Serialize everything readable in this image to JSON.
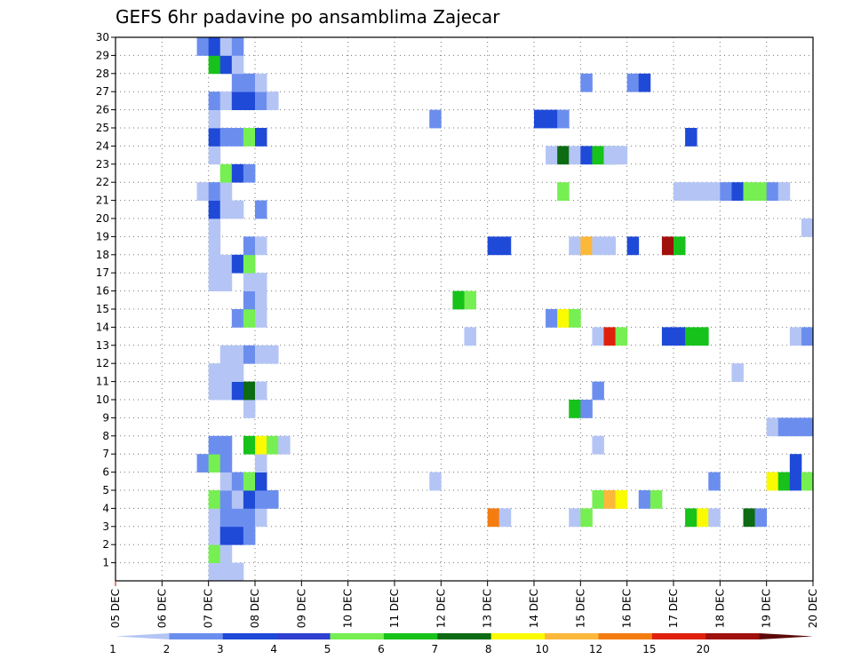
{
  "chart_data": {
    "type": "heatmap",
    "title": "GEFS 6hr padavine po ansamblima Zajecar",
    "x_ticks": [
      "05 DEC",
      "06 DEC",
      "07 DEC",
      "08 DEC",
      "09 DEC",
      "10 DEC",
      "11 DEC",
      "12 DEC",
      "13 DEC",
      "14 DEC",
      "15 DEC",
      "16 DEC",
      "17 DEC",
      "18 DEC",
      "19 DEC",
      "20 DEC"
    ],
    "y_ticks": [
      1,
      2,
      3,
      4,
      5,
      6,
      7,
      8,
      9,
      10,
      11,
      12,
      13,
      14,
      15,
      16,
      17,
      18,
      19,
      20,
      21,
      22,
      23,
      24,
      25,
      26,
      27,
      28,
      29,
      30
    ],
    "xlim": [
      0,
      60
    ],
    "ylim": [
      0,
      30
    ],
    "x_unit": "6-hour steps from 05 DEC 00Z",
    "grid": true,
    "colorbar": {
      "levels": [
        "1",
        "2",
        "3",
        "4",
        "5",
        "6",
        "7",
        "8",
        "10",
        "12",
        "15",
        "20"
      ],
      "colors": [
        "#b4c5f5",
        "#6b8eee",
        "#1f4ad8",
        "#2f3fd0",
        "#76ef52",
        "#17c21a",
        "#0d6b13",
        "#fafa00",
        "#fbb83a",
        "#f47c10",
        "#e0200c",
        "#a0100c",
        "#5c0808"
      ]
    },
    "cells": [
      {
        "x": 8,
        "y": 0,
        "c": 0
      },
      {
        "x": 9,
        "y": 0,
        "c": 0
      },
      {
        "x": 10,
        "y": 0,
        "c": 0
      },
      {
        "x": 8,
        "y": 1,
        "c": 4
      },
      {
        "x": 9,
        "y": 1,
        "c": 0
      },
      {
        "x": 8,
        "y": 2,
        "c": 0
      },
      {
        "x": 9,
        "y": 2,
        "c": 2
      },
      {
        "x": 10,
        "y": 2,
        "c": 2
      },
      {
        "x": 11,
        "y": 2,
        "c": 1
      },
      {
        "x": 8,
        "y": 3,
        "c": 0
      },
      {
        "x": 9,
        "y": 3,
        "c": 1
      },
      {
        "x": 10,
        "y": 3,
        "c": 1
      },
      {
        "x": 11,
        "y": 3,
        "c": 1
      },
      {
        "x": 12,
        "y": 3,
        "c": 0
      },
      {
        "x": 8,
        "y": 4,
        "c": 4
      },
      {
        "x": 9,
        "y": 4,
        "c": 1
      },
      {
        "x": 10,
        "y": 4,
        "c": 0
      },
      {
        "x": 11,
        "y": 4,
        "c": 2
      },
      {
        "x": 12,
        "y": 4,
        "c": 1
      },
      {
        "x": 13,
        "y": 4,
        "c": 1
      },
      {
        "x": 9,
        "y": 5,
        "c": 0
      },
      {
        "x": 10,
        "y": 5,
        "c": 1
      },
      {
        "x": 11,
        "y": 5,
        "c": 4
      },
      {
        "x": 12,
        "y": 5,
        "c": 2
      },
      {
        "x": 7,
        "y": 6,
        "c": 1
      },
      {
        "x": 8,
        "y": 6,
        "c": 4
      },
      {
        "x": 9,
        "y": 6,
        "c": 1
      },
      {
        "x": 12,
        "y": 6,
        "c": 0
      },
      {
        "x": 8,
        "y": 7,
        "c": 1
      },
      {
        "x": 9,
        "y": 7,
        "c": 1
      },
      {
        "x": 11,
        "y": 7,
        "c": 5
      },
      {
        "x": 12,
        "y": 7,
        "c": 7
      },
      {
        "x": 13,
        "y": 7,
        "c": 4
      },
      {
        "x": 14,
        "y": 7,
        "c": 0
      },
      {
        "x": 11,
        "y": 9,
        "c": 0
      },
      {
        "x": 8,
        "y": 10,
        "c": 0
      },
      {
        "x": 9,
        "y": 10,
        "c": 0
      },
      {
        "x": 10,
        "y": 10,
        "c": 2
      },
      {
        "x": 11,
        "y": 10,
        "c": 6
      },
      {
        "x": 12,
        "y": 10,
        "c": 0
      },
      {
        "x": 8,
        "y": 11,
        "c": 0
      },
      {
        "x": 9,
        "y": 11,
        "c": 0
      },
      {
        "x": 10,
        "y": 11,
        "c": 0
      },
      {
        "x": 9,
        "y": 12,
        "c": 0
      },
      {
        "x": 10,
        "y": 12,
        "c": 0
      },
      {
        "x": 11,
        "y": 12,
        "c": 1
      },
      {
        "x": 12,
        "y": 12,
        "c": 0
      },
      {
        "x": 13,
        "y": 12,
        "c": 0
      },
      {
        "x": 10,
        "y": 14,
        "c": 1
      },
      {
        "x": 11,
        "y": 14,
        "c": 4
      },
      {
        "x": 12,
        "y": 14,
        "c": 0
      },
      {
        "x": 11,
        "y": 15,
        "c": 1
      },
      {
        "x": 12,
        "y": 15,
        "c": 0
      },
      {
        "x": 8,
        "y": 16,
        "c": 0
      },
      {
        "x": 9,
        "y": 16,
        "c": 0
      },
      {
        "x": 11,
        "y": 16,
        "c": 0
      },
      {
        "x": 12,
        "y": 16,
        "c": 0
      },
      {
        "x": 8,
        "y": 17,
        "c": 0
      },
      {
        "x": 9,
        "y": 17,
        "c": 0
      },
      {
        "x": 10,
        "y": 17,
        "c": 2
      },
      {
        "x": 11,
        "y": 17,
        "c": 4
      },
      {
        "x": 8,
        "y": 18,
        "c": 0
      },
      {
        "x": 11,
        "y": 18,
        "c": 1
      },
      {
        "x": 12,
        "y": 18,
        "c": 0
      },
      {
        "x": 8,
        "y": 19,
        "c": 0
      },
      {
        "x": 8,
        "y": 20,
        "c": 2
      },
      {
        "x": 9,
        "y": 20,
        "c": 0
      },
      {
        "x": 10,
        "y": 20,
        "c": 0
      },
      {
        "x": 12,
        "y": 20,
        "c": 1
      },
      {
        "x": 7,
        "y": 21,
        "c": 0
      },
      {
        "x": 8,
        "y": 21,
        "c": 1
      },
      {
        "x": 9,
        "y": 21,
        "c": 0
      },
      {
        "x": 9,
        "y": 22,
        "c": 4
      },
      {
        "x": 10,
        "y": 22,
        "c": 2
      },
      {
        "x": 11,
        "y": 22,
        "c": 1
      },
      {
        "x": 8,
        "y": 23,
        "c": 0
      },
      {
        "x": 8,
        "y": 24,
        "c": 2
      },
      {
        "x": 9,
        "y": 24,
        "c": 1
      },
      {
        "x": 10,
        "y": 24,
        "c": 1
      },
      {
        "x": 11,
        "y": 24,
        "c": 4
      },
      {
        "x": 12,
        "y": 24,
        "c": 2
      },
      {
        "x": 8,
        "y": 25,
        "c": 0
      },
      {
        "x": 8,
        "y": 26,
        "c": 1
      },
      {
        "x": 9,
        "y": 26,
        "c": 0
      },
      {
        "x": 10,
        "y": 26,
        "c": 2
      },
      {
        "x": 11,
        "y": 26,
        "c": 2
      },
      {
        "x": 12,
        "y": 26,
        "c": 1
      },
      {
        "x": 13,
        "y": 26,
        "c": 0
      },
      {
        "x": 10,
        "y": 27,
        "c": 1
      },
      {
        "x": 11,
        "y": 27,
        "c": 1
      },
      {
        "x": 12,
        "y": 27,
        "c": 0
      },
      {
        "x": 8,
        "y": 28,
        "c": 5
      },
      {
        "x": 9,
        "y": 28,
        "c": 2
      },
      {
        "x": 10,
        "y": 28,
        "c": 0
      },
      {
        "x": 7,
        "y": 29,
        "c": 1
      },
      {
        "x": 8,
        "y": 29,
        "c": 2
      },
      {
        "x": 9,
        "y": 29,
        "c": 0
      },
      {
        "x": 10,
        "y": 29,
        "c": 1
      },
      {
        "x": 27,
        "y": 5,
        "c": 0
      },
      {
        "x": 27,
        "y": 25,
        "c": 1
      },
      {
        "x": 29,
        "y": 15,
        "c": 5
      },
      {
        "x": 30,
        "y": 15,
        "c": 4
      },
      {
        "x": 30,
        "y": 13,
        "c": 0
      },
      {
        "x": 32,
        "y": 3,
        "c": 9
      },
      {
        "x": 33,
        "y": 3,
        "c": 0
      },
      {
        "x": 32,
        "y": 18,
        "c": 2
      },
      {
        "x": 33,
        "y": 18,
        "c": 2
      },
      {
        "x": 36,
        "y": 25,
        "c": 2
      },
      {
        "x": 37,
        "y": 25,
        "c": 2
      },
      {
        "x": 38,
        "y": 25,
        "c": 1
      },
      {
        "x": 37,
        "y": 23,
        "c": 0
      },
      {
        "x": 38,
        "y": 23,
        "c": 6
      },
      {
        "x": 37,
        "y": 14,
        "c": 1
      },
      {
        "x": 38,
        "y": 14,
        "c": 7
      },
      {
        "x": 39,
        "y": 14,
        "c": 4
      },
      {
        "x": 38,
        "y": 21,
        "c": 4
      },
      {
        "x": 39,
        "y": 23,
        "c": 0
      },
      {
        "x": 40,
        "y": 23,
        "c": 2
      },
      {
        "x": 41,
        "y": 23,
        "c": 5
      },
      {
        "x": 42,
        "y": 23,
        "c": 5
      },
      {
        "x": 39,
        "y": 18,
        "c": 0
      },
      {
        "x": 40,
        "y": 18,
        "c": 8
      },
      {
        "x": 39,
        "y": 9,
        "c": 5
      },
      {
        "x": 40,
        "y": 9,
        "c": 1
      },
      {
        "x": 39,
        "y": 3,
        "c": 0
      },
      {
        "x": 40,
        "y": 3,
        "c": 4
      },
      {
        "x": 40,
        "y": 27,
        "c": 1
      },
      {
        "x": 41,
        "y": 10,
        "c": 1
      },
      {
        "x": 41,
        "y": 4,
        "c": 4
      },
      {
        "x": 42,
        "y": 4,
        "c": 8
      },
      {
        "x": 43,
        "y": 4,
        "c": 7
      },
      {
        "x": 41,
        "y": 13,
        "c": 0
      },
      {
        "x": 42,
        "y": 13,
        "c": 10
      },
      {
        "x": 43,
        "y": 13,
        "c": 4
      },
      {
        "x": 41,
        "y": 18,
        "c": 0
      },
      {
        "x": 42,
        "y": 18,
        "c": 0
      },
      {
        "x": 41,
        "y": 7,
        "c": 0
      },
      {
        "x": 42,
        "y": 23,
        "c": 0
      },
      {
        "x": 43,
        "y": 23,
        "c": 0
      },
      {
        "x": 44,
        "y": 18,
        "c": 2
      },
      {
        "x": 44,
        "y": 27,
        "c": 1
      },
      {
        "x": 45,
        "y": 27,
        "c": 2
      },
      {
        "x": 45,
        "y": 4,
        "c": 1
      },
      {
        "x": 46,
        "y": 4,
        "c": 4
      },
      {
        "x": 47,
        "y": 18,
        "c": 11
      },
      {
        "x": 48,
        "y": 18,
        "c": 5
      },
      {
        "x": 47,
        "y": 13,
        "c": 2
      },
      {
        "x": 48,
        "y": 13,
        "c": 2
      },
      {
        "x": 49,
        "y": 13,
        "c": 5
      },
      {
        "x": 50,
        "y": 13,
        "c": 5
      },
      {
        "x": 48,
        "y": 21,
        "c": 0
      },
      {
        "x": 49,
        "y": 21,
        "c": 0
      },
      {
        "x": 50,
        "y": 21,
        "c": 0
      },
      {
        "x": 51,
        "y": 21,
        "c": 0
      },
      {
        "x": 49,
        "y": 24,
        "c": 2
      },
      {
        "x": 49,
        "y": 3,
        "c": 5
      },
      {
        "x": 50,
        "y": 3,
        "c": 7
      },
      {
        "x": 51,
        "y": 3,
        "c": 0
      },
      {
        "x": 51,
        "y": 5,
        "c": 1
      },
      {
        "x": 52,
        "y": 21,
        "c": 1
      },
      {
        "x": 53,
        "y": 21,
        "c": 2
      },
      {
        "x": 54,
        "y": 21,
        "c": 4
      },
      {
        "x": 55,
        "y": 21,
        "c": 4
      },
      {
        "x": 56,
        "y": 21,
        "c": 1
      },
      {
        "x": 57,
        "y": 21,
        "c": 0
      },
      {
        "x": 53,
        "y": 11,
        "c": 0
      },
      {
        "x": 54,
        "y": 3,
        "c": 6
      },
      {
        "x": 55,
        "y": 3,
        "c": 1
      },
      {
        "x": 56,
        "y": 5,
        "c": 7
      },
      {
        "x": 56,
        "y": 8,
        "c": 0
      },
      {
        "x": 57,
        "y": 8,
        "c": 1
      },
      {
        "x": 58,
        "y": 8,
        "c": 1
      },
      {
        "x": 59,
        "y": 8,
        "c": 1
      },
      {
        "x": 57,
        "y": 5,
        "c": 5
      },
      {
        "x": 58,
        "y": 5,
        "c": 2
      },
      {
        "x": 59,
        "y": 5,
        "c": 4
      },
      {
        "x": 58,
        "y": 6,
        "c": 2
      },
      {
        "x": 58,
        "y": 13,
        "c": 0
      },
      {
        "x": 59,
        "y": 13,
        "c": 1
      },
      {
        "x": 59,
        "y": 19,
        "c": 0
      }
    ]
  }
}
